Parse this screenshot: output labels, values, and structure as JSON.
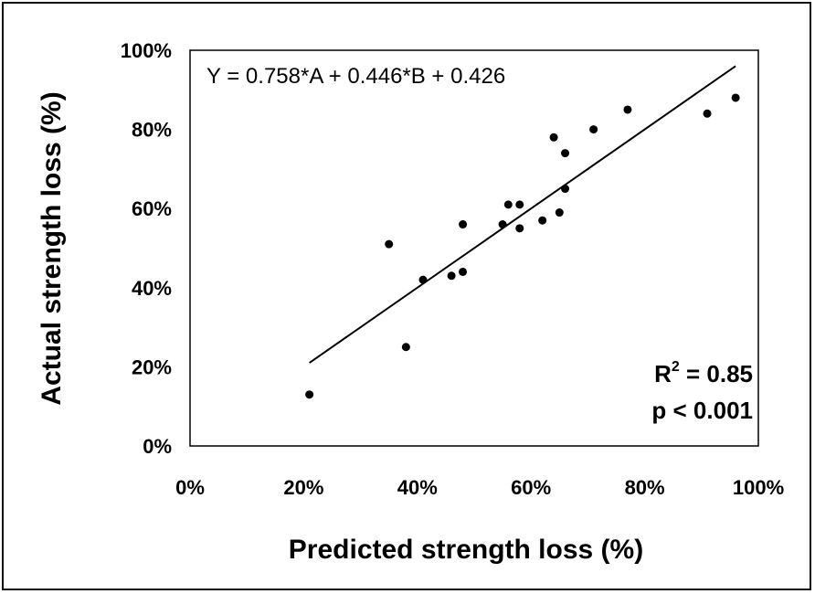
{
  "chart_data": {
    "type": "scatter",
    "xlabel": "Predicted strength loss (%)",
    "ylabel": "Actual strength loss (%)",
    "xlim": [
      0,
      100
    ],
    "ylim": [
      0,
      100
    ],
    "x_ticks": [
      "0%",
      "20%",
      "40%",
      "60%",
      "80%",
      "100%"
    ],
    "y_ticks": [
      "0%",
      "20%",
      "40%",
      "60%",
      "80%",
      "100%"
    ],
    "grid": false,
    "points": [
      {
        "x": 21,
        "y": 13
      },
      {
        "x": 35,
        "y": 51
      },
      {
        "x": 38,
        "y": 25
      },
      {
        "x": 41,
        "y": 42
      },
      {
        "x": 46,
        "y": 43
      },
      {
        "x": 48,
        "y": 44
      },
      {
        "x": 48,
        "y": 56
      },
      {
        "x": 55,
        "y": 56
      },
      {
        "x": 56,
        "y": 61
      },
      {
        "x": 58,
        "y": 61
      },
      {
        "x": 58,
        "y": 55
      },
      {
        "x": 62,
        "y": 57
      },
      {
        "x": 64,
        "y": 78
      },
      {
        "x": 65,
        "y": 59
      },
      {
        "x": 66,
        "y": 74
      },
      {
        "x": 66,
        "y": 65
      },
      {
        "x": 71,
        "y": 80
      },
      {
        "x": 77,
        "y": 85
      },
      {
        "x": 91,
        "y": 84
      },
      {
        "x": 96,
        "y": 88
      }
    ],
    "trendline": {
      "x": [
        21,
        96
      ],
      "y": [
        21,
        96
      ]
    },
    "equation": "Y = 0.758*A + 0.446*B + 0.426",
    "r2_prefix": "R",
    "r2_sup": "2",
    "r2_value": " = 0.85",
    "p_value": "p < 0.001"
  }
}
